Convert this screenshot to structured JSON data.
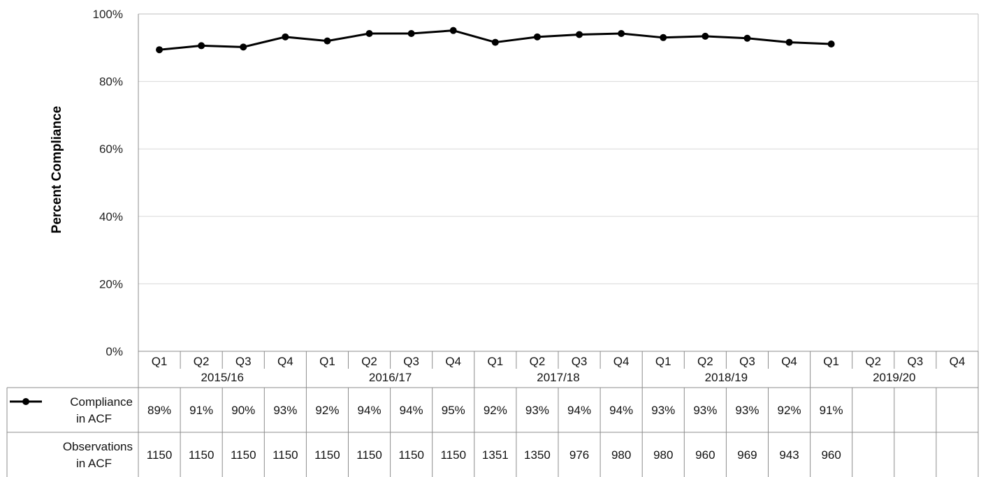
{
  "chart_data": {
    "type": "line",
    "ylabel": "Percent Compliance",
    "ylim": [
      0,
      100
    ],
    "y_ticks": [
      "0%",
      "20%",
      "40%",
      "60%",
      "80%",
      "100%"
    ],
    "y_tick_values": [
      0,
      20,
      40,
      60,
      80,
      100
    ],
    "grid": true,
    "categories": [
      "Q1",
      "Q2",
      "Q3",
      "Q4",
      "Q1",
      "Q2",
      "Q3",
      "Q4",
      "Q1",
      "Q2",
      "Q3",
      "Q4",
      "Q1",
      "Q2",
      "Q3",
      "Q4",
      "Q1",
      "Q2",
      "Q3",
      "Q4"
    ],
    "years": [
      "2015/16",
      "2016/17",
      "2017/18",
      "2018/19",
      "2019/20"
    ],
    "series": [
      {
        "name": "Compliance in ACF",
        "values": [
          89.4,
          90.6,
          90.2,
          93.2,
          92.0,
          94.2,
          94.2,
          95.1,
          91.6,
          93.2,
          93.9,
          94.2,
          93.0,
          93.4,
          92.8,
          91.6,
          91.1,
          null,
          null,
          null
        ],
        "color": "#000000"
      }
    ],
    "table": {
      "rows": [
        {
          "label_line1": "Compliance",
          "label_line2": "in ACF",
          "cells": [
            "89%",
            "91%",
            "90%",
            "93%",
            "92%",
            "94%",
            "94%",
            "95%",
            "92%",
            "93%",
            "94%",
            "94%",
            "93%",
            "93%",
            "93%",
            "92%",
            "91%",
            "",
            "",
            ""
          ]
        },
        {
          "label_line1": "Observations",
          "label_line2": "in ACF",
          "cells": [
            "1150",
            "1150",
            "1150",
            "1150",
            "1150",
            "1150",
            "1150",
            "1150",
            "1351",
            "1350",
            "976",
            "980",
            "980",
            "960",
            "969",
            "943",
            "960",
            "",
            "",
            ""
          ]
        }
      ]
    }
  }
}
